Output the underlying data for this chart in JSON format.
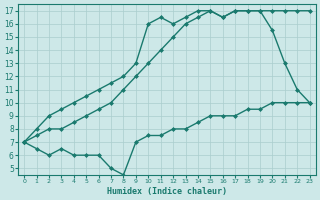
{
  "xlabel": "Humidex (Indice chaleur)",
  "bg_color": "#cde8e8",
  "line_color": "#1a7a6e",
  "grid_color": "#aacece",
  "xlim": [
    -0.5,
    23.5
  ],
  "ylim": [
    4.5,
    17.5
  ],
  "xticks": [
    0,
    1,
    2,
    3,
    4,
    5,
    6,
    7,
    8,
    9,
    10,
    11,
    12,
    13,
    14,
    15,
    16,
    17,
    18,
    19,
    20,
    21,
    22,
    23
  ],
  "yticks": [
    5,
    6,
    7,
    8,
    9,
    10,
    11,
    12,
    13,
    14,
    15,
    16,
    17
  ],
  "series": [
    {
      "x": [
        0,
        1,
        2,
        3,
        4,
        5,
        6,
        7,
        8,
        9,
        10,
        11,
        12,
        13,
        14,
        15,
        16,
        17,
        18,
        19,
        20,
        21,
        22,
        23
      ],
      "y": [
        7,
        8,
        9,
        9.5,
        10,
        10.5,
        11,
        11.5,
        12,
        13,
        16,
        16.5,
        16,
        16.5,
        17,
        17,
        16.5,
        17,
        17,
        17,
        15.5,
        13,
        11,
        10
      ],
      "marker": "D",
      "markersize": 2.0,
      "linewidth": 1.0
    },
    {
      "x": [
        0,
        1,
        2,
        3,
        4,
        5,
        6,
        7,
        8,
        9,
        10,
        11,
        12,
        13,
        14,
        15,
        16,
        17,
        18,
        19,
        20,
        21,
        22,
        23
      ],
      "y": [
        7,
        7.5,
        8,
        8,
        8.5,
        9,
        9.5,
        10,
        11,
        12,
        13,
        14,
        15,
        16,
        16.5,
        17,
        16.5,
        17,
        17,
        17,
        17,
        17,
        17,
        17
      ],
      "marker": "D",
      "markersize": 2.0,
      "linewidth": 1.0
    },
    {
      "x": [
        0,
        1,
        2,
        3,
        4,
        5,
        6,
        7,
        8,
        9,
        10,
        11,
        12,
        13,
        14,
        15,
        16,
        17,
        18,
        19,
        20,
        21,
        22,
        23
      ],
      "y": [
        7,
        6.5,
        6,
        6.5,
        6,
        6,
        6,
        5,
        4.5,
        7,
        7.5,
        7.5,
        8,
        8,
        8.5,
        9,
        9,
        9,
        9.5,
        9.5,
        10,
        10,
        10,
        10
      ],
      "marker": "D",
      "markersize": 2.0,
      "linewidth": 1.0
    }
  ]
}
